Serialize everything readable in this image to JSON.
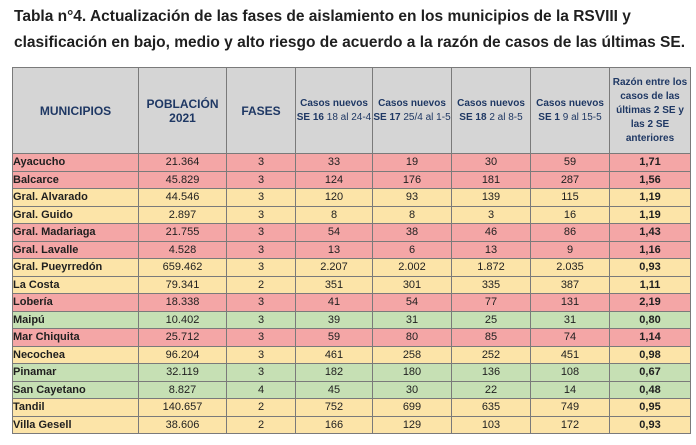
{
  "caption": {
    "line1": "Tabla n°4. Actualización de las fases de aislamiento en los municipios de la RSVIII y",
    "line2": "clasificación en bajo, medio y alto riesgo de acuerdo a la razón de casos de las últimas SE."
  },
  "headers": {
    "municipios": "MUNICIPIOS",
    "poblacion_l1": "POBLACIÓN",
    "poblacion_l2": "2021",
    "fases": "FASES",
    "se16_l1": "Casos nuevos",
    "se16_bold": "SE 16",
    "se16_rest": " 18 al 24-4",
    "se17_l1": "Casos nuevos",
    "se17_bold": "SE 17",
    "se17_rest": " 25/4 al 1-5",
    "se18_l1": "Casos nuevos",
    "se18_bold": "SE 18",
    "se18_rest": " 2 al 8-5",
    "se19_l1": "Casos nuevos",
    "se19_bold": "SE 1",
    "se19_rest": " 9 al 15-5",
    "razon": "Razón entre los casos de las últimas 2 SE y las 2 SE anteriores"
  },
  "colors": {
    "alto": "#f4a6a6",
    "medio": "#fce4a8",
    "bajo": "#c6e0b4",
    "header_bg": "#d5d5d5",
    "header_text": "#1f3864"
  },
  "rows": [
    {
      "risk": "alto",
      "municipio": "Ayacucho",
      "poblacion": "21.364",
      "fases": "3",
      "se16": "33",
      "se17": "19",
      "se18": "30",
      "se19": "59",
      "razon": "1,71"
    },
    {
      "risk": "alto",
      "municipio": "Balcarce",
      "poblacion": "45.829",
      "fases": "3",
      "se16": "124",
      "se17": "176",
      "se18": "181",
      "se19": "287",
      "razon": "1,56"
    },
    {
      "risk": "medio",
      "municipio": "Gral. Alvarado",
      "poblacion": "44.546",
      "fases": "3",
      "se16": "120",
      "se17": "93",
      "se18": "139",
      "se19": "115",
      "razon": "1,19"
    },
    {
      "risk": "medio",
      "municipio": "Gral. Guido",
      "poblacion": "2.897",
      "fases": "3",
      "se16": "8",
      "se17": "8",
      "se18": "3",
      "se19": "16",
      "razon": "1,19"
    },
    {
      "risk": "alto",
      "municipio": "Gral. Madariaga",
      "poblacion": "21.755",
      "fases": "3",
      "se16": "54",
      "se17": "38",
      "se18": "46",
      "se19": "86",
      "razon": "1,43"
    },
    {
      "risk": "alto",
      "municipio": "Gral. Lavalle",
      "poblacion": "4.528",
      "fases": "3",
      "se16": "13",
      "se17": "6",
      "se18": "13",
      "se19": "9",
      "razon": "1,16"
    },
    {
      "risk": "medio",
      "municipio": "Gral. Pueyrredón",
      "poblacion": "659.462",
      "fases": "3",
      "se16": "2.207",
      "se17": "2.002",
      "se18": "1.872",
      "se19": "2.035",
      "razon": "0,93"
    },
    {
      "risk": "medio",
      "municipio": "La Costa",
      "poblacion": "79.341",
      "fases": "2",
      "se16": "351",
      "se17": "301",
      "se18": "335",
      "se19": "387",
      "razon": "1,11"
    },
    {
      "risk": "alto",
      "municipio": "Lobería",
      "poblacion": "18.338",
      "fases": "3",
      "se16": "41",
      "se17": "54",
      "se18": "77",
      "se19": "131",
      "razon": "2,19"
    },
    {
      "risk": "bajo",
      "municipio": "Maipú",
      "poblacion": "10.402",
      "fases": "3",
      "se16": "39",
      "se17": "31",
      "se18": "25",
      "se19": "31",
      "razon": "0,80"
    },
    {
      "risk": "alto",
      "municipio": "Mar Chiquita",
      "poblacion": "25.712",
      "fases": "3",
      "se16": "59",
      "se17": "80",
      "se18": "85",
      "se19": "74",
      "razon": "1,14"
    },
    {
      "risk": "medio",
      "municipio": "Necochea",
      "poblacion": "96.204",
      "fases": "3",
      "se16": "461",
      "se17": "258",
      "se18": "252",
      "se19": "451",
      "razon": "0,98"
    },
    {
      "risk": "bajo",
      "municipio": "Pinamar",
      "poblacion": "32.119",
      "fases": "3",
      "se16": "182",
      "se17": "180",
      "se18": "136",
      "se19": "108",
      "razon": "0,67"
    },
    {
      "risk": "bajo",
      "municipio": "San Cayetano",
      "poblacion": "8.827",
      "fases": "4",
      "se16": "45",
      "se17": "30",
      "se18": "22",
      "se19": "14",
      "razon": "0,48"
    },
    {
      "risk": "medio",
      "municipio": "Tandil",
      "poblacion": "140.657",
      "fases": "2",
      "se16": "752",
      "se17": "699",
      "se18": "635",
      "se19": "749",
      "razon": "0,95"
    },
    {
      "risk": "medio",
      "municipio": "Villa Gesell",
      "poblacion": "38.606",
      "fases": "2",
      "se16": "166",
      "se17": "129",
      "se18": "103",
      "se19": "172",
      "razon": "0,93"
    }
  ]
}
